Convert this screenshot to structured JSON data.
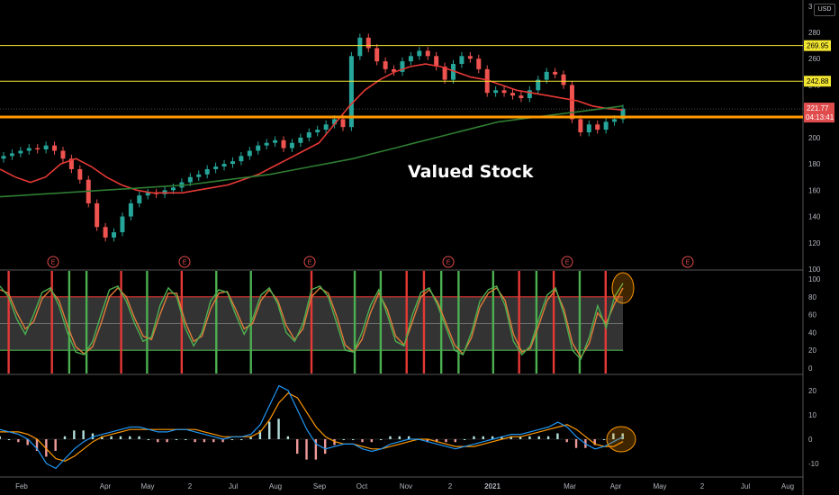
{
  "currency_button": "USD",
  "chart_data": [
    {
      "type": "candlestick",
      "title": "",
      "annotation": "Valued Stock",
      "y_ticks": [
        100,
        120,
        140,
        160,
        180,
        200,
        220,
        240,
        260,
        280
      ],
      "ylim": [
        100,
        300
      ],
      "x_ticks": [
        "Feb",
        "Apr",
        "May",
        "2",
        "Jul",
        "Aug",
        "Sep",
        "Oct",
        "Nov",
        "2",
        "2021",
        "Mar",
        "Apr",
        "May",
        "2",
        "Jul",
        "Aug"
      ],
      "horizontal_levels": [
        {
          "value": 269.95,
          "label": "269.95",
          "color": "#f2e531"
        },
        {
          "value": 242.88,
          "label": "242.88",
          "color": "#f2e531"
        },
        {
          "value": 215.69,
          "label": "215.69",
          "color": "#ff9800"
        }
      ],
      "last_price": {
        "value": 221.77,
        "label": "221.77",
        "countdown": "04:13:41",
        "color": "#e04b4b"
      },
      "earnings_markers": [
        "E",
        "E",
        "E",
        "E",
        "E",
        "E"
      ],
      "close_series": [
        186,
        188,
        190,
        192,
        191,
        194,
        190,
        184,
        176,
        168,
        150,
        132,
        124,
        128,
        140,
        150,
        156,
        158,
        157,
        160,
        162,
        166,
        170,
        172,
        176,
        178,
        180,
        182,
        186,
        190,
        194,
        196,
        198,
        192,
        196,
        200,
        204,
        206,
        210,
        214,
        208,
        262,
        276,
        268,
        258,
        252,
        250,
        258,
        262,
        266,
        262,
        254,
        244,
        256,
        262,
        260,
        252,
        234,
        236,
        234,
        232,
        230,
        236,
        244,
        250,
        248,
        240,
        214,
        204,
        210,
        206,
        212,
        214,
        222
      ],
      "series": [
        {
          "name": "",
          "color": "#e53935",
          "values": [
            176,
            170,
            166,
            170,
            180,
            184,
            178,
            170,
            164,
            160,
            158,
            158,
            158,
            160,
            162,
            164,
            168,
            172,
            178,
            184,
            190,
            196,
            210,
            224,
            236,
            244,
            250,
            254,
            256,
            254,
            250,
            246,
            244,
            240,
            236,
            234,
            232,
            230,
            228,
            224,
            222,
            221
          ]
        },
        {
          "name": "",
          "color": "#2e7d32",
          "values": [
            155,
            156,
            157,
            158,
            159,
            160,
            161,
            162,
            163,
            164,
            166,
            168,
            170,
            172,
            175,
            178,
            181,
            184,
            188,
            192,
            196,
            200,
            204,
            208,
            212,
            214,
            216,
            218,
            220,
            222,
            224
          ]
        }
      ]
    },
    {
      "type": "line",
      "title": "",
      "y_ticks": [
        0,
        20,
        40,
        60,
        80,
        100
      ],
      "ylim": [
        -5,
        105
      ],
      "band": {
        "upper": 80,
        "middle": 50,
        "lower": 20
      },
      "series": [
        {
          "name": "",
          "color": "#4caf50",
          "values": [
            92,
            80,
            55,
            38,
            60,
            85,
            90,
            70,
            40,
            18,
            15,
            30,
            60,
            88,
            92,
            75,
            50,
            30,
            35,
            70,
            90,
            80,
            45,
            25,
            40,
            75,
            88,
            85,
            60,
            38,
            55,
            82,
            90,
            72,
            40,
            30,
            50,
            88,
            92,
            80,
            50,
            20,
            18,
            40,
            70,
            88,
            60,
            30,
            25,
            60,
            85,
            90,
            70,
            45,
            20,
            15,
            40,
            75,
            88,
            92,
            70,
            30,
            15,
            25,
            55,
            82,
            90,
            60,
            20,
            10,
            35,
            70,
            45,
            80,
            95
          ]
        },
        {
          "name": "",
          "color": "#e07b39",
          "values": [
            88,
            84,
            62,
            44,
            52,
            78,
            88,
            76,
            48,
            24,
            16,
            24,
            50,
            80,
            90,
            80,
            56,
            36,
            32,
            60,
            84,
            84,
            52,
            30,
            36,
            66,
            84,
            86,
            66,
            44,
            50,
            76,
            88,
            76,
            48,
            32,
            44,
            80,
            90,
            84,
            58,
            26,
            18,
            32,
            62,
            84,
            66,
            36,
            26,
            52,
            80,
            88,
            74,
            50,
            26,
            16,
            34,
            68,
            84,
            90,
            76,
            38,
            18,
            22,
            48,
            76,
            88,
            66,
            28,
            12,
            28,
            62,
            50,
            72,
            90
          ]
        }
      ],
      "vertical_signals": [
        {
          "at": 1,
          "color": "#e53935"
        },
        {
          "at": 6,
          "color": "#e53935"
        },
        {
          "at": 8,
          "color": "#4caf50"
        },
        {
          "at": 10,
          "color": "#4caf50"
        },
        {
          "at": 14,
          "color": "#e53935"
        },
        {
          "at": 17,
          "color": "#4caf50"
        },
        {
          "at": 21,
          "color": "#e53935"
        },
        {
          "at": 25,
          "color": "#4caf50"
        },
        {
          "at": 29,
          "color": "#4caf50"
        },
        {
          "at": 36,
          "color": "#e53935"
        },
        {
          "at": 41,
          "color": "#4caf50"
        },
        {
          "at": 44,
          "color": "#4caf50"
        },
        {
          "at": 47,
          "color": "#e53935"
        },
        {
          "at": 49,
          "color": "#e53935"
        },
        {
          "at": 51,
          "color": "#4caf50"
        },
        {
          "at": 53,
          "color": "#4caf50"
        },
        {
          "at": 57,
          "color": "#4caf50"
        },
        {
          "at": 60,
          "color": "#e53935"
        },
        {
          "at": 62,
          "color": "#4caf50"
        },
        {
          "at": 64,
          "color": "#e53935"
        },
        {
          "at": 67,
          "color": "#4caf50"
        },
        {
          "at": 70,
          "color": "#e53935"
        }
      ]
    },
    {
      "type": "bar",
      "title": "",
      "y_ticks": [
        -10,
        0,
        10,
        20
      ],
      "ylim": [
        -15,
        25
      ],
      "macd": [
        4,
        3,
        2,
        0,
        -4,
        -10,
        -12,
        -8,
        -4,
        -1,
        1,
        2,
        3,
        4,
        5,
        5,
        4,
        3,
        3,
        4,
        4,
        3,
        2,
        1,
        0,
        1,
        1,
        2,
        6,
        14,
        22,
        20,
        12,
        4,
        -2,
        -4,
        -3,
        -2,
        -2,
        -4,
        -5,
        -4,
        -2,
        -1,
        0,
        0,
        -1,
        -2,
        -3,
        -4,
        -3,
        -2,
        -1,
        0,
        1,
        2,
        2,
        3,
        4,
        5,
        7,
        5,
        1,
        -2,
        -4,
        -3,
        -1,
        1
      ],
      "signal": [
        3,
        3,
        3,
        2,
        0,
        -4,
        -8,
        -9,
        -7,
        -4,
        -1,
        1,
        2,
        3,
        4,
        4,
        4,
        4,
        4,
        4,
        4,
        4,
        3,
        2,
        1,
        1,
        1,
        1,
        3,
        8,
        15,
        19,
        17,
        11,
        5,
        1,
        -1,
        -2,
        -2,
        -3,
        -4,
        -4,
        -3,
        -2,
        -1,
        0,
        0,
        -1,
        -2,
        -3,
        -3,
        -3,
        -2,
        -1,
        0,
        1,
        1,
        2,
        3,
        4,
        5,
        6,
        4,
        1,
        -2,
        -3,
        -3,
        -1
      ],
      "histogram": [
        1,
        0,
        -1,
        -2,
        -4,
        -6,
        -4,
        1,
        3,
        3,
        2,
        1,
        1,
        1,
        1,
        1,
        0,
        -1,
        -1,
        0,
        0,
        -1,
        -1,
        -1,
        -1,
        0,
        0,
        1,
        3,
        6,
        7,
        1,
        -5,
        -7,
        -7,
        -5,
        -2,
        0,
        0,
        -1,
        -1,
        0,
        1,
        1,
        1,
        0,
        -1,
        -1,
        -1,
        -1,
        0,
        1,
        1,
        1,
        1,
        1,
        1,
        1,
        1,
        1,
        2,
        -1,
        -3,
        -3,
        -2,
        0,
        2,
        2
      ]
    }
  ]
}
